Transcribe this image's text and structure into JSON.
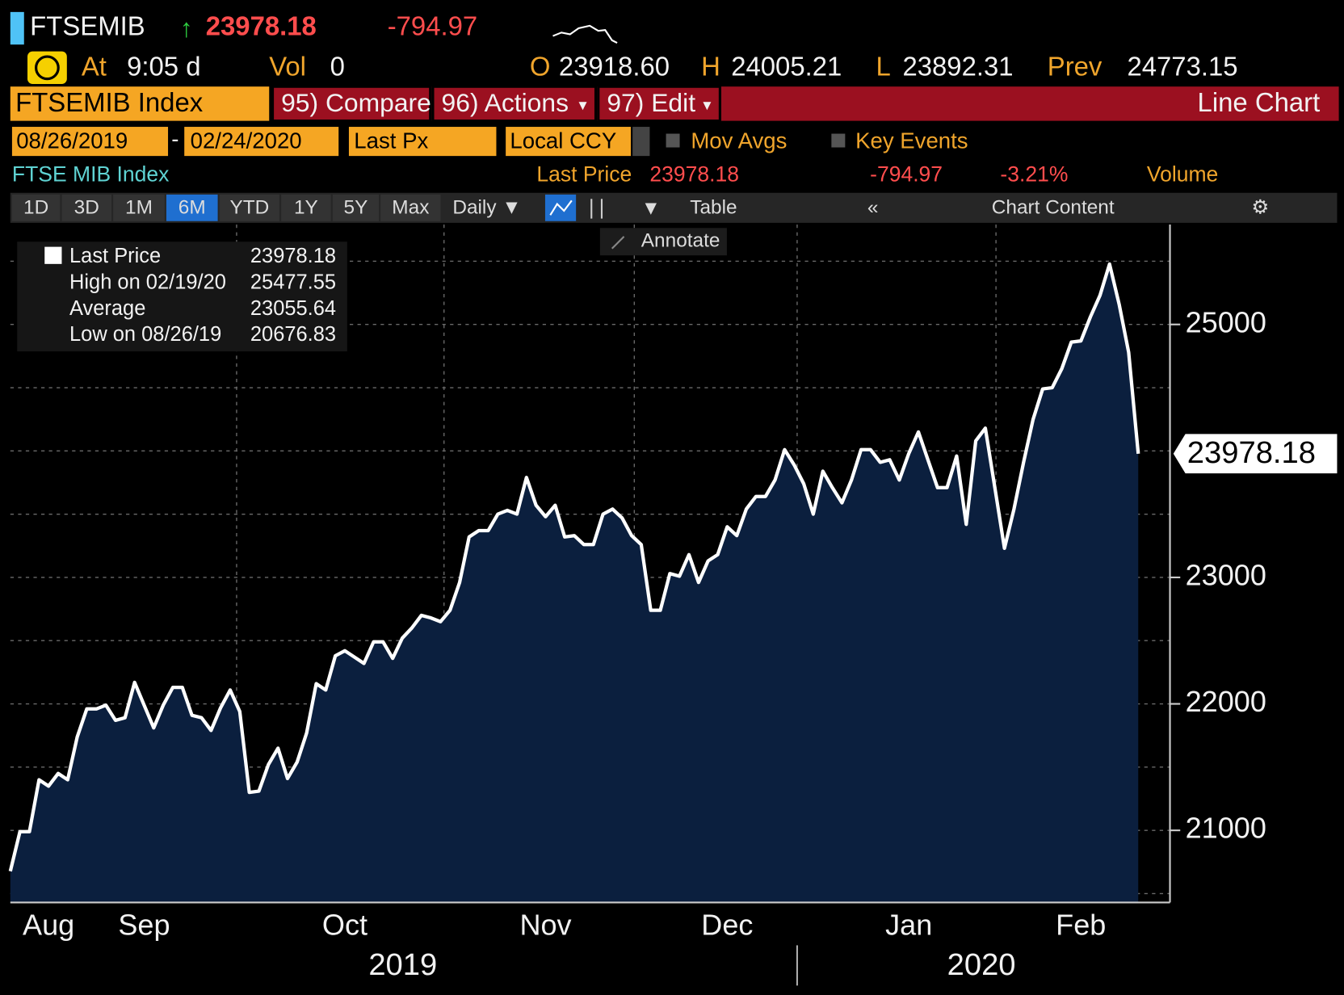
{
  "header": {
    "ticker": "FTSEMIB",
    "last": "23978.18",
    "change": "-794.97",
    "time_label": "At",
    "time": "9:05 d",
    "vol_label": "Vol",
    "vol": "0",
    "open_label": "O",
    "open": "23918.60",
    "high_label": "H",
    "high": "24005.21",
    "low_label": "L",
    "low": "23892.31",
    "prev_label": "Prev",
    "prev": "24773.15"
  },
  "toolbar": {
    "security": "FTSEMIB Index",
    "buttons": [
      "95) Compare",
      "96) Actions",
      "97) Edit"
    ],
    "view": "Line Chart"
  },
  "settings": {
    "start": "08/26/2019",
    "end": "02/24/2020",
    "field": "Last Px",
    "currency": "Local CCY",
    "mov_avgs": "Mov Avgs",
    "key_events": "Key Events"
  },
  "info": {
    "name": "FTSE MIB Index",
    "last_label": "Last Price",
    "last": "23978.18",
    "change": "-794.97",
    "change_pct": "-3.21%",
    "volume": "Volume"
  },
  "periods": [
    "1D",
    "3D",
    "1M",
    "6M",
    "YTD",
    "1Y",
    "5Y",
    "Max"
  ],
  "controls": {
    "frequency": "Daily ▼",
    "table": "Table",
    "content": "Chart Content",
    "annotate": "Annotate"
  },
  "legend": [
    {
      "label": "Last Price",
      "value": "23978.18"
    },
    {
      "label": "High on 02/19/20",
      "value": "25477.55"
    },
    {
      "label": "Average",
      "value": "23055.64"
    },
    {
      "label": "Low on 08/26/19",
      "value": "20676.83"
    }
  ],
  "chart_data": {
    "type": "line",
    "categories": [
      null,
      null,
      null,
      null,
      "Aug",
      null,
      null,
      null,
      null,
      null,
      null,
      null,
      null,
      null,
      "Sep",
      null,
      null,
      null,
      null,
      null,
      null,
      null,
      null,
      null,
      null,
      null,
      null,
      null,
      null,
      null,
      null,
      null,
      null,
      null,
      null,
      "Oct",
      null,
      null,
      null,
      null,
      null,
      null,
      null,
      null,
      null,
      null,
      null,
      null,
      null,
      null,
      null,
      null,
      null,
      null,
      null,
      null,
      "Nov",
      null,
      null,
      null,
      null,
      null,
      null,
      null,
      null,
      null,
      null,
      null,
      null,
      null,
      null,
      null,
      null,
      null,
      null,
      "Dec",
      null,
      null,
      null,
      null,
      null,
      null,
      null,
      null,
      null,
      null,
      null,
      null,
      null,
      null,
      null,
      null,
      null,
      null,
      "Jan",
      null,
      null,
      null,
      null,
      null,
      null,
      null,
      null,
      null,
      null,
      null,
      null,
      null,
      null,
      null,
      null,
      null,
      "Feb",
      null,
      null,
      null,
      null,
      null,
      null
    ],
    "series": [
      {
        "name": "Last Price",
        "color": "#ffffff",
        "fill": "#0b1f3e",
        "values": [
          20676.83,
          20990,
          20990,
          21400,
          21350,
          21450,
          21400,
          21740,
          21960,
          21960,
          21990,
          21870,
          21890,
          22170,
          21990,
          21810,
          21990,
          22130,
          22130,
          21910,
          21890,
          21790,
          21970,
          22110,
          21940,
          21300,
          21310,
          21520,
          21650,
          21410,
          21540,
          21770,
          22160,
          22110,
          22380,
          22420,
          22370,
          22320,
          22490,
          22490,
          22360,
          22520,
          22600,
          22700,
          22680,
          22650,
          22740,
          22960,
          23320,
          23370,
          23370,
          23500,
          23530,
          23500,
          23790,
          23570,
          23480,
          23570,
          23320,
          23330,
          23260,
          23260,
          23500,
          23540,
          23470,
          23330,
          23260,
          22740,
          22740,
          23030,
          23010,
          23180,
          22960,
          23130,
          23180,
          23400,
          23330,
          23540,
          23640,
          23640,
          23770,
          24010,
          23890,
          23740,
          23500,
          23840,
          23710,
          23590,
          23770,
          24010,
          24010,
          23910,
          23930,
          23770,
          23980,
          24150,
          23930,
          23710,
          23710,
          23960,
          23420,
          24080,
          24180,
          23710,
          23230,
          23540,
          23910,
          24250,
          24490,
          24500,
          24650,
          24860,
          24870,
          25060,
          25230,
          25477.55,
          25160,
          24780,
          23978.18
        ]
      }
    ],
    "last_value_label": "23978.18",
    "year_labels": [
      "2019",
      "2020"
    ],
    "ylim": [
      20430,
      25790
    ],
    "yticks": [
      21000,
      22000,
      23000,
      25000
    ],
    "minor_grid": [
      20500,
      21000,
      21500,
      22000,
      22500,
      23000,
      23500,
      24000,
      24500,
      25000,
      25500
    ],
    "grid": true
  }
}
